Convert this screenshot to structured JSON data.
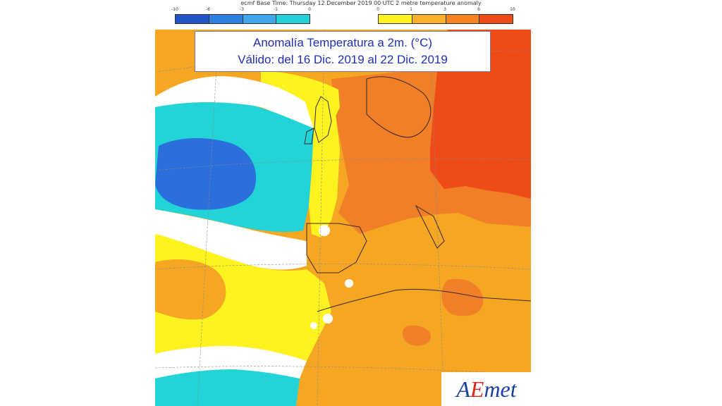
{
  "header": {
    "text": "ecmf Base Time: Thursday 12 December 2019 00 UTC 2 metre temperature anomaly"
  },
  "legend_cold": {
    "ticks": [
      "-10",
      "-6",
      "-3",
      "-1",
      "0"
    ],
    "colors": [
      "#2255c8",
      "#2f7fe0",
      "#3fa6ea",
      "#22d0d6"
    ]
  },
  "legend_warm": {
    "ticks": [
      "0",
      "1",
      "3",
      "6",
      "10"
    ],
    "colors": [
      "#fff21e",
      "#f8b12a",
      "#f58223",
      "#ee4b16"
    ]
  },
  "title": {
    "line1": "Anomalía Temperatura a 2m. (°C)",
    "line2": "Válido: del 16 Dic. 2019 al 22 Dic. 2019"
  },
  "logo": {
    "text_a": "A",
    "text_e": "E",
    "text_rest": "met"
  },
  "map_colors": {
    "orange": "#f5a623",
    "dark_orange": "#f07f28",
    "red": "#ee4b16",
    "yellow": "#fff31f",
    "cyan": "#22d3d8",
    "blue": "#2a6fdc",
    "white": "#ffffff"
  }
}
